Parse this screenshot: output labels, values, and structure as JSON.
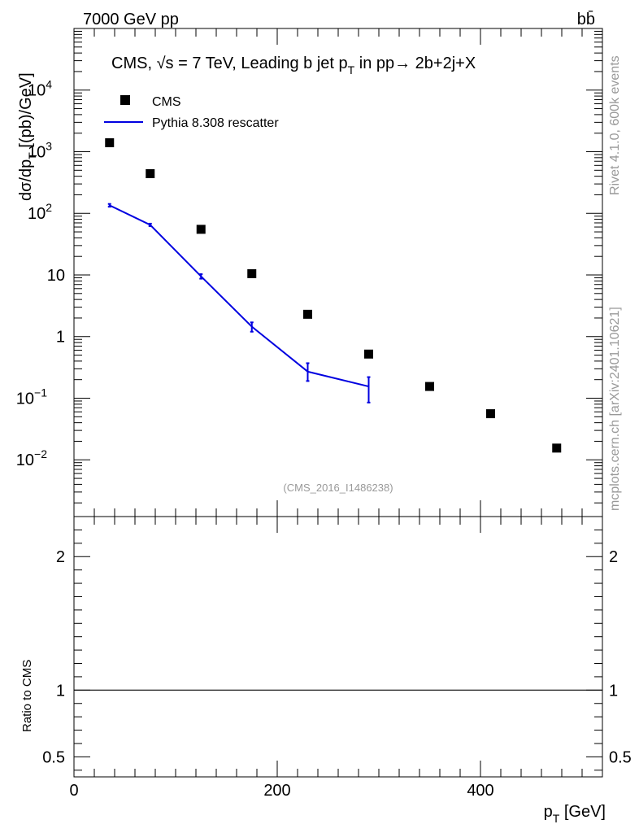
{
  "header": {
    "beam": "7000 GeV pp",
    "process": "bb̄"
  },
  "side": {
    "rivet": "Rivet 4.1.0,  600k events",
    "mcplots": "mcplots.cern.ch [arXiv:2401.10621]"
  },
  "colors": {
    "data": "#000000",
    "mc": "#0000e0",
    "watermark": "#999999"
  },
  "chart_data": [
    {
      "type": "scatter",
      "panel": "main",
      "title": "CMS, √s = 7 TeV, Leading b jet p_T in pp→ 2b+2j+X",
      "title_parts": {
        "prefix": "CMS, ",
        "sqrt": "√s",
        "mid": " = 7 TeV, Leading b jet p",
        "sub": "T",
        "suffix": " in pp→  2b+2j+X"
      },
      "ylabel": "dσ/dp_T [(pb)/GeV]",
      "ylabel_parts": {
        "main": "dσ/dp",
        "sub": "T",
        "tail": "  [(pb)/GeV]"
      },
      "yscale": "log",
      "ylim": [
        0.0012,
        100000
      ],
      "xlim": [
        0,
        520
      ],
      "y_ticks": [
        {
          "value": 0.01,
          "base": "10",
          "exp": "−2"
        },
        {
          "value": 0.1,
          "base": "10",
          "exp": "−1"
        },
        {
          "value": 1,
          "base": "1",
          "exp": ""
        },
        {
          "value": 10,
          "base": "10",
          "exp": ""
        },
        {
          "value": 100,
          "base": "10",
          "exp": "2"
        },
        {
          "value": 1000,
          "base": "10",
          "exp": "3"
        },
        {
          "value": 10000,
          "base": "10",
          "exp": "4"
        }
      ],
      "legend": {
        "position": "top-left",
        "entries": [
          {
            "label": "CMS",
            "style": "marker"
          },
          {
            "label": "Pythia 8.308 rescatter",
            "style": "line"
          }
        ]
      },
      "watermark": "(CMS_2016_I1486238)",
      "series": [
        {
          "name": "CMS",
          "style": "square",
          "x": [
            35,
            75,
            125,
            175,
            230,
            290,
            350,
            410,
            475
          ],
          "y": [
            1400,
            440,
            55,
            10.5,
            2.3,
            0.52,
            0.155,
            0.056,
            0.0155
          ]
        },
        {
          "name": "Pythia 8.308 rescatter",
          "style": "line",
          "x": [
            35,
            75,
            125,
            175,
            230,
            290
          ],
          "y": [
            135,
            65,
            9.5,
            1.45,
            0.27,
            0.155
          ],
          "err_low": [
            128,
            62,
            8.7,
            1.2,
            0.19,
            0.085
          ],
          "err_high": [
            142,
            68,
            10.3,
            1.7,
            0.37,
            0.22
          ]
        }
      ]
    },
    {
      "type": "line",
      "panel": "ratio",
      "ylabel": "Ratio to CMS",
      "xlabel": "p_T [GeV]",
      "xlabel_parts": {
        "main": "p",
        "sub": "T",
        "tail": " [GeV]"
      },
      "xlim": [
        0,
        520
      ],
      "ylim": [
        0.35,
        2.3
      ],
      "x_ticks": [
        {
          "value": 0,
          "label": "0"
        },
        {
          "value": 200,
          "label": "200"
        },
        {
          "value": 400,
          "label": "400"
        }
      ],
      "y_ticks": [
        {
          "value": 0.5,
          "label": "0.5"
        },
        {
          "value": 1,
          "label": "1"
        },
        {
          "value": 2,
          "label": "2"
        }
      ],
      "reference_line": 1
    }
  ]
}
